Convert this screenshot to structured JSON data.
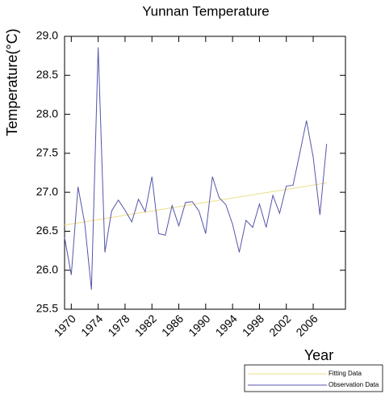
{
  "chart_data": {
    "type": "line",
    "title": "Yunnan Temperature",
    "y_label": "Temperature(°C)",
    "x_label": "Year",
    "series": [
      {
        "name": "Fitting Data",
        "color": "#eedd88",
        "x": [
          1969,
          2008
        ],
        "values": [
          26.58,
          27.12
        ]
      },
      {
        "name": "Observation Data",
        "color": "#5555aa",
        "x": [
          1969,
          1970,
          1971,
          1972,
          1973,
          1974,
          1975,
          1976,
          1977,
          1978,
          1979,
          1980,
          1981,
          1982,
          1983,
          1984,
          1985,
          1986,
          1987,
          1988,
          1989,
          1990,
          1991,
          1992,
          1993,
          1994,
          1995,
          1996,
          1997,
          1998,
          1999,
          2000,
          2001,
          2002,
          2003,
          2004,
          2005,
          2006,
          2007,
          2008
        ],
        "values": [
          26.42,
          25.94,
          27.07,
          26.6,
          25.75,
          28.86,
          26.23,
          26.76,
          26.9,
          26.77,
          26.62,
          26.91,
          26.75,
          27.2,
          26.47,
          26.45,
          26.83,
          26.57,
          26.87,
          26.88,
          26.76,
          26.47,
          27.2,
          26.93,
          26.84,
          26.59,
          26.23,
          26.64,
          26.55,
          26.85,
          26.55,
          26.96,
          26.73,
          27.08,
          27.09,
          27.5,
          27.92,
          27.45,
          26.71,
          27.62
        ]
      }
    ],
    "xlim": [
      1969,
      2010.8
    ],
    "xticks": [
      1970,
      1974,
      1978,
      1982,
      1986,
      1990,
      1994,
      1998,
      2002,
      2006
    ],
    "ylim": [
      25.5,
      29.0
    ],
    "yticks": [
      {
        "value": 25.5,
        "label": "25.5"
      },
      {
        "value": 26.0,
        "label": "26.0"
      },
      {
        "value": 26.5,
        "label": "26.5"
      },
      {
        "value": 27.0,
        "label": "27.0"
      },
      {
        "value": 27.5,
        "label": "27.5"
      },
      {
        "value": 28.0,
        "label": "28.0"
      },
      {
        "value": 28.5,
        "label": "28.5"
      },
      {
        "value": 29.0,
        "label": "29.0"
      }
    ],
    "legend": "bottom-right"
  }
}
